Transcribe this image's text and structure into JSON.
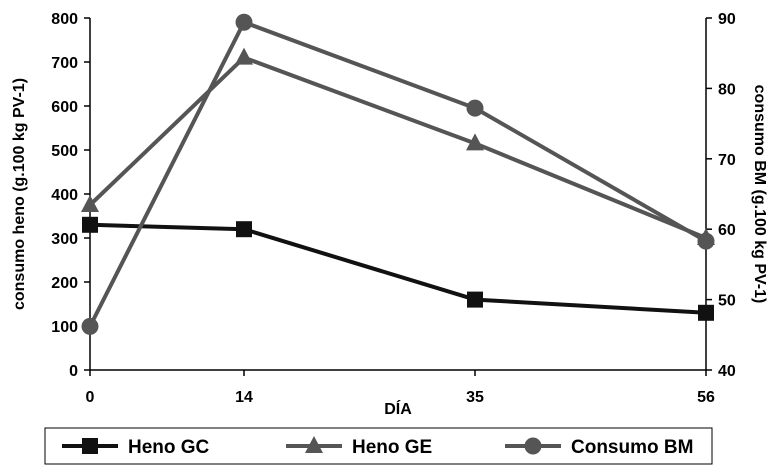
{
  "chart_data": {
    "type": "line",
    "x": [
      0,
      14,
      35,
      56
    ],
    "x_tick_labels": [
      "0",
      "14",
      "35",
      "56"
    ],
    "xlabel": "DÍA",
    "ylabel_left": "consumo heno (g.100 kg PV-1)",
    "ylabel_right": "consumo BM (g.100 kg PV-1)",
    "ylim_left": [
      0,
      800
    ],
    "ylim_right": [
      40,
      90
    ],
    "y_ticks_left": [
      0,
      100,
      200,
      300,
      400,
      500,
      600,
      700,
      800
    ],
    "y_ticks_right": [
      40,
      50,
      60,
      70,
      80,
      90
    ],
    "grid": false,
    "legend_position": "bottom",
    "series": [
      {
        "name": "Heno GC",
        "axis": "left",
        "marker": "square",
        "color": "#111111",
        "values": [
          330,
          320,
          160,
          130
        ]
      },
      {
        "name": "Heno GE",
        "axis": "left",
        "marker": "triangle",
        "color": "#555555",
        "values": [
          375,
          710,
          515,
          300
        ]
      },
      {
        "name": "Consumo BM",
        "axis": "right",
        "marker": "circle",
        "color": "#555555",
        "values": [
          46.2,
          89.4,
          77.2,
          58.3
        ]
      }
    ]
  }
}
